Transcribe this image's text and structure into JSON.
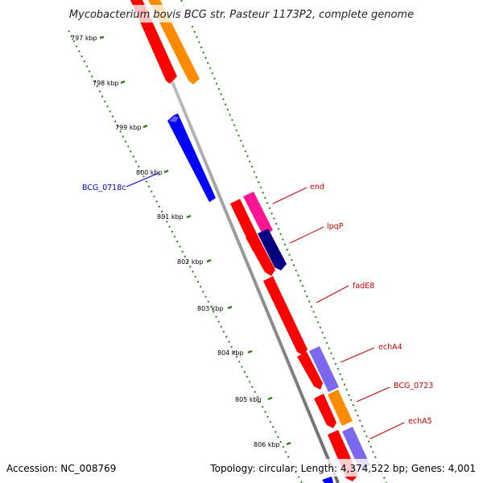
{
  "title": "Mycobacterium bovis BCG str. Pasteur 1173P2, complete genome",
  "footer": {
    "accession": "Accession: NC_008769",
    "topology": "Topology: circular; Length: 4,374,522 bp; Genes: 4,001"
  },
  "ruler": {
    "labels": [
      "797 kbp",
      "798 kbp",
      "799 kbp",
      "800 kbp",
      "801 kbp",
      "802 kbp",
      "803 kbp",
      "804 kbp",
      "805 kbp",
      "806 kbp"
    ],
    "tick_color": "#2e7d1e"
  },
  "genes": [
    {
      "id": "BCG_0718c",
      "label": "BCG_0718c",
      "strand": "reverse",
      "color": "#0000ff",
      "label_color": "#0000cc"
    },
    {
      "id": "end",
      "label": "end",
      "strand": "forward",
      "color": "#ff1493",
      "label_color": "#cc0000"
    },
    {
      "id": "lpqP",
      "label": "lpqP",
      "strand": "forward",
      "color": "#000080",
      "label_color": "#cc0000"
    },
    {
      "id": "fadE8",
      "label": "fadE8",
      "strand": "forward",
      "color": "#ff0000",
      "label_color": "#cc0000"
    },
    {
      "id": "echA4",
      "label": "echA4",
      "strand": "forward",
      "color": "#7b68ee",
      "label_color": "#cc0000"
    },
    {
      "id": "BCG_0723",
      "label": "BCG_0723",
      "strand": "forward",
      "color": "#ff8c00",
      "label_color": "#cc0000"
    },
    {
      "id": "echA5",
      "label": "echA5",
      "strand": "forward",
      "color": "#7b68ee",
      "label_color": "#cc0000"
    }
  ],
  "colors": {
    "backbone": "#999999",
    "forward_cds": "#ff0000",
    "orange_cds": "#ff8c00",
    "reverse_cds": "#0000ff",
    "label_red": "#cc0000",
    "label_blue": "#0000cc"
  }
}
